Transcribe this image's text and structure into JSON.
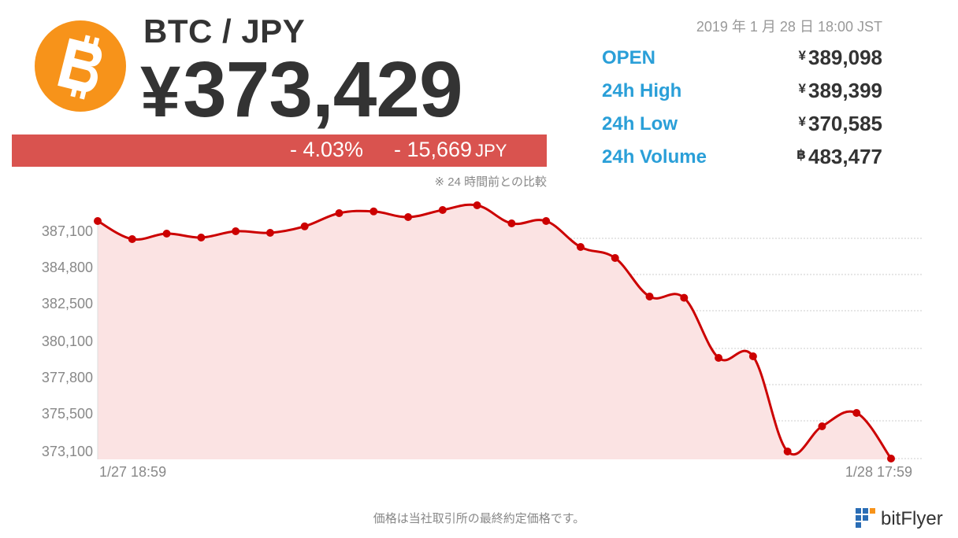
{
  "header": {
    "pair": "BTC / JPY",
    "price_symbol": "¥",
    "price": "373,429",
    "change_pct": "- 4.03%",
    "change_amount": "- 15,669",
    "change_unit": "JPY",
    "comparison_note": "※ 24 時間前との比較",
    "timestamp": "2019 年 1 月 28 日 18:00 JST"
  },
  "stats": [
    {
      "label": "OPEN",
      "currency": "¥",
      "value": "389,098"
    },
    {
      "label": "24h High",
      "currency": "¥",
      "value": "389,399"
    },
    {
      "label": "24h Low",
      "currency": "¥",
      "value": "370,585"
    },
    {
      "label": "24h Volume",
      "currency": "฿",
      "value": "483,477"
    }
  ],
  "colors": {
    "logo_orange": "#f7931a",
    "negative_bar": "#d9534f",
    "stat_label": "#2a9fd8",
    "line": "#cc0000",
    "area_fill": "#fbe3e3",
    "brand_blue": "#2a6db5",
    "brand_orange": "#f7931a"
  },
  "chart_data": {
    "type": "area",
    "x": [
      "1/27 18:59",
      "",
      "",
      "",
      "",
      "",
      "",
      "",
      "",
      "",
      "",
      "",
      "",
      "",
      "",
      "",
      "",
      "",
      "",
      "",
      "",
      "",
      "",
      "1/28 17:59"
    ],
    "x_tick_labels": [
      "1/27 18:59",
      "1/28 17:59"
    ],
    "y_tick_labels": [
      "387,100",
      "384,800",
      "382,500",
      "380,100",
      "377,800",
      "375,500",
      "373,100"
    ],
    "y_ticks": [
      387100,
      384800,
      382500,
      380100,
      377800,
      375500,
      373100
    ],
    "ylim": [
      372800,
      388800
    ],
    "grid": true,
    "series": [
      {
        "values": [
          388200,
          387050,
          387400,
          387150,
          387550,
          387450,
          387860,
          388700,
          388810,
          388450,
          388900,
          389200,
          388050,
          388200,
          386550,
          385850,
          383400,
          383320,
          379500,
          379600,
          373550,
          375150,
          376000,
          373100
        ]
      }
    ]
  },
  "footer": {
    "note": "価格は当社取引所の最終約定価格です。",
    "brand": "bitFlyer"
  }
}
